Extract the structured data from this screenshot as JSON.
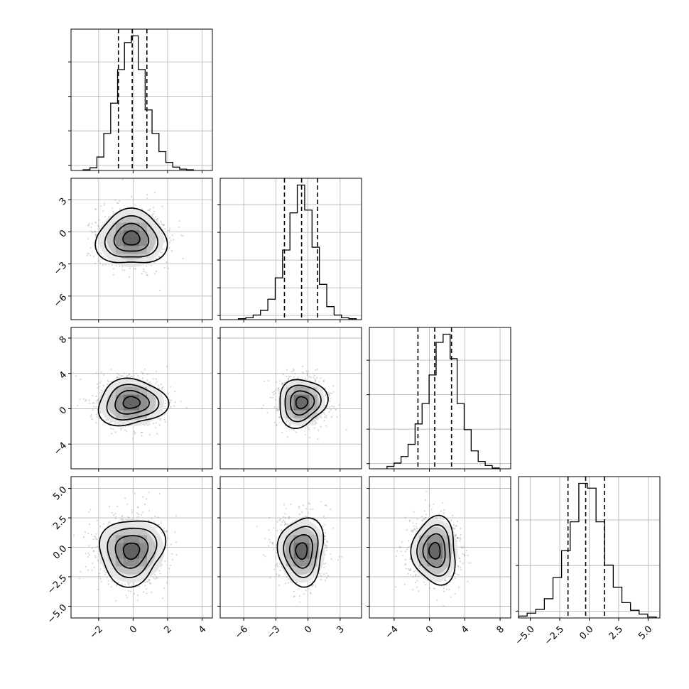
{
  "chart_data": {
    "type": "corner",
    "parameters": 4,
    "grid": true,
    "colors": {
      "histogram": "#000000",
      "contour": "#000000",
      "points": "#8a8a8a",
      "gridline": "#b0b0b0"
    },
    "axes": [
      {
        "range": [
          -3.6,
          4.6
        ],
        "ticks": [
          -2,
          0,
          2,
          4
        ],
        "tick_labels": [
          "−2",
          "0",
          "2",
          "4"
        ]
      },
      {
        "range": [
          -8.2,
          5.0
        ],
        "ticks": [
          -6,
          -3,
          0,
          3
        ],
        "tick_labels": [
          "−6",
          "−3",
          "0",
          "3"
        ]
      },
      {
        "range": [
          -6.8,
          9.2
        ],
        "ticks": [
          -4,
          0,
          4,
          8
        ],
        "tick_labels": [
          "−4",
          "0",
          "4",
          "8"
        ]
      },
      {
        "range": [
          -6.0,
          6.0
        ],
        "ticks": [
          -5.0,
          -2.5,
          0.0,
          2.5,
          5.0
        ],
        "tick_labels": [
          "−5.0",
          "−2.5",
          "0.0",
          "2.5",
          "5.0"
        ]
      }
    ],
    "histograms": [
      {
        "quantiles": [
          -0.85,
          -0.05,
          0.8
        ],
        "bin_range": [
          -2.9,
          3.5
        ],
        "counts": [
          1,
          4,
          20,
          55,
          100,
          150,
          190,
          200,
          150,
          90,
          55,
          28,
          12,
          5,
          2,
          1
        ],
        "count_ticks": 4
      },
      {
        "quantiles": [
          -2.2,
          -0.6,
          0.9
        ],
        "bin_range": [
          -6.5,
          4.5
        ],
        "counts": [
          1,
          2,
          5,
          10,
          22,
          45,
          75,
          115,
          145,
          118,
          78,
          38,
          14,
          5,
          2,
          1
        ],
        "count_ticks": 5
      },
      {
        "quantiles": [
          -1.3,
          0.6,
          2.5
        ],
        "bin_range": [
          -4.8,
          7.9
        ],
        "counts": [
          3,
          7,
          15,
          30,
          55,
          80,
          115,
          155,
          165,
          135,
          80,
          48,
          22,
          9,
          4,
          1
        ],
        "count_ticks": 4
      },
      {
        "quantiles": [
          -1.8,
          -0.3,
          1.3
        ],
        "bin_range": [
          -6.0,
          5.7
        ],
        "counts": [
          2,
          5,
          9,
          20,
          42,
          70,
          100,
          140,
          135,
          100,
          55,
          32,
          16,
          8,
          4,
          1
        ],
        "count_ticks": 3
      }
    ],
    "pairs": [
      {
        "row": 1,
        "col": 0,
        "center": [
          -0.1,
          -0.6
        ],
        "sd": [
          0.95,
          1.35
        ]
      },
      {
        "row": 2,
        "col": 0,
        "center": [
          -0.1,
          0.7
        ],
        "sd": [
          0.95,
          1.35
        ]
      },
      {
        "row": 2,
        "col": 1,
        "center": [
          -0.6,
          0.7
        ],
        "sd": [
          1.1,
          1.35
        ]
      },
      {
        "row": 3,
        "col": 0,
        "center": [
          -0.1,
          -0.3
        ],
        "sd": [
          0.95,
          1.35
        ]
      },
      {
        "row": 3,
        "col": 1,
        "center": [
          -0.6,
          -0.3
        ],
        "sd": [
          1.1,
          1.35
        ]
      },
      {
        "row": 3,
        "col": 2,
        "center": [
          0.6,
          -0.3
        ],
        "sd": [
          1.3,
          1.35
        ]
      }
    ],
    "contour_levels_sigma": [
      0.5,
      1.0,
      1.5,
      2.0
    ]
  }
}
